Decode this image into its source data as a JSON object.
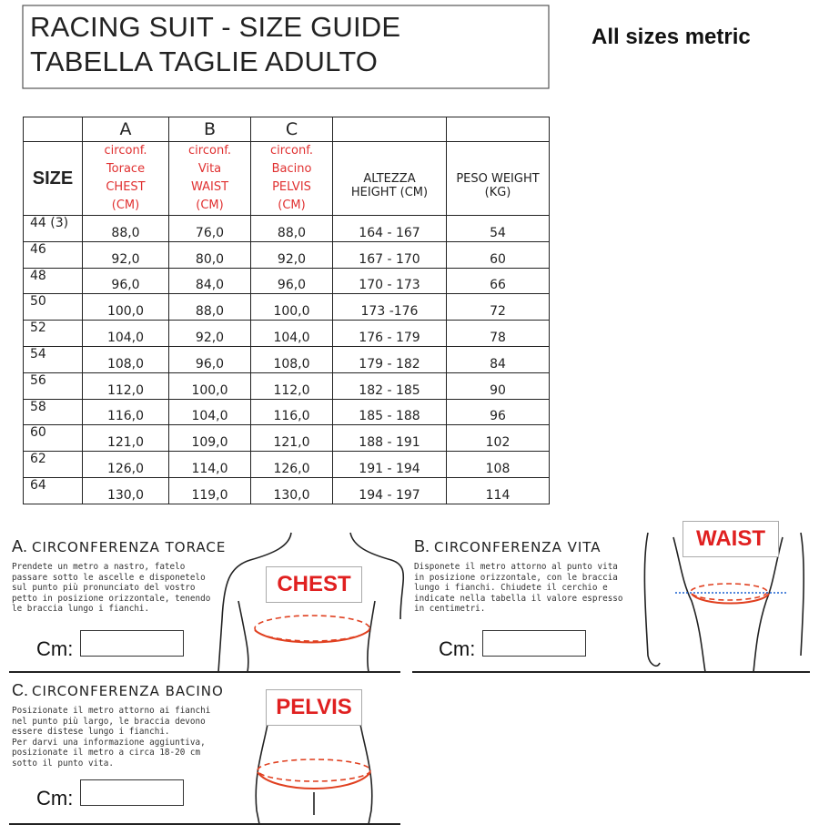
{
  "header": {
    "title": [
      "RACING SUIT - SIZE GUIDE",
      "TABELLA  TAGLIE  ADULTO"
    ],
    "note": "All sizes metric"
  },
  "table": {
    "letters": [
      "A",
      "B",
      "C"
    ],
    "columns": [
      [
        "SIZE"
      ],
      [
        "circonf.",
        "Torace",
        "CHEST",
        "(CM)"
      ],
      [
        "circonf.",
        "Vita",
        "WAIST",
        "(CM)"
      ],
      [
        "circonf.",
        "Bacino",
        "PELVIS",
        "(CM)"
      ],
      [
        "ALTEZZA",
        "HEIGHT (CM)"
      ],
      [
        "PESO WEIGHT",
        "(KG)"
      ]
    ],
    "rows": [
      [
        "44 (3)",
        "88,0",
        "76,0",
        "88,0",
        "164 - 167",
        "54"
      ],
      [
        "46",
        "92,0",
        "80,0",
        "92,0",
        "167 - 170",
        "60"
      ],
      [
        "48",
        "96,0",
        "84,0",
        "96,0",
        "170 - 173",
        "66"
      ],
      [
        "50",
        "100,0",
        "88,0",
        "100,0",
        "173 -176",
        "72"
      ],
      [
        "52",
        "104,0",
        "92,0",
        "104,0",
        "176 - 179",
        "78"
      ],
      [
        "54",
        "108,0",
        "96,0",
        "108,0",
        "179 - 182",
        "84"
      ],
      [
        "56",
        "112,0",
        "100,0",
        "112,0",
        "182 - 185",
        "90"
      ],
      [
        "58",
        "116,0",
        "104,0",
        "116,0",
        "185 - 188",
        "96"
      ],
      [
        "60",
        "121,0",
        "109,0",
        "121,0",
        "188 - 191",
        "102"
      ],
      [
        "62",
        "126,0",
        "114,0",
        "126,0",
        "191 - 194",
        "108"
      ],
      [
        "64",
        "130,0",
        "119,0",
        "130,0",
        "194 - 197",
        "114"
      ]
    ]
  },
  "panels": [
    {
      "letter": "A.",
      "title": "CIRCONFERENZA TORACE",
      "text": [
        "Prendete un metro a nastro, fatelo",
        "passare sotto le ascelle e disponetelo",
        "sul punto più pronunciato del vostro",
        "petto in posizione orizzontale, tenendo",
        "le braccia lungo i fianchi."
      ],
      "badge": "CHEST",
      "field": "Cm:"
    },
    {
      "letter": "B.",
      "title": "CIRCONFERENZA VITA",
      "text": [
        "Disponete il metro attorno al punto vita",
        "in posizione orizzontale, con le braccia",
        "lungo i fianchi. Chiudete il cerchio e",
        "indicate nella tabella il valore espresso",
        "in centimetri."
      ],
      "badge": "WAIST",
      "field": "Cm:"
    },
    {
      "letter": "C.",
      "title": "CIRCONFERENZA BACINO",
      "text": [
        "Posizionate il metro attorno ai fianchi",
        "nel punto più largo, le braccia devono",
        "essere distese lungo i fianchi.",
        "Per darvi una informazione aggiuntiva,",
        "posizionate il metro a circa 18-20 cm",
        "sotto il punto vita."
      ],
      "badge": "PELVIS",
      "field": "Cm:"
    }
  ]
}
